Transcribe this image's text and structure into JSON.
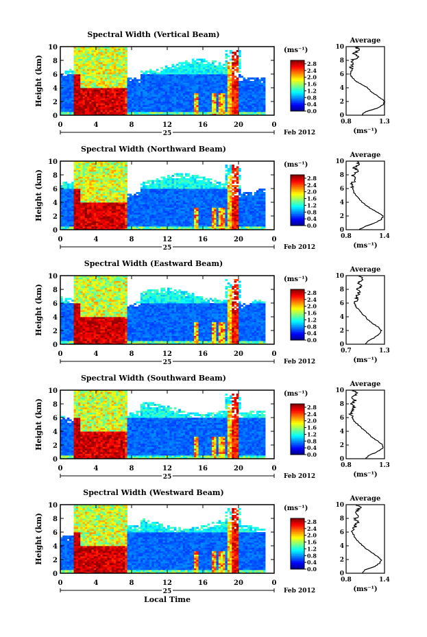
{
  "figure": {
    "xlabel": "Local Time",
    "date_label": "Feb 2012",
    "day_label": "25",
    "ylabel": "Height (km)",
    "cbar_unit": "(ms⁻¹)",
    "avg_title": "Average",
    "avg_xlabel": "(ms⁻¹)"
  },
  "chart_data": [
    {
      "type": "heatmap",
      "title": "Spectral Width (Vertical Beam)",
      "x_ticks": [
        "0",
        "4",
        "8",
        "12",
        "16",
        "20",
        "0"
      ],
      "y_ticks": [
        "0",
        "2",
        "4",
        "6",
        "8",
        "10"
      ],
      "colorbar_ticks": [
        "0.0",
        "0.4",
        "0.8",
        "1.2",
        "1.6",
        "2.0",
        "2.4",
        "2.8"
      ],
      "colorbar_range": [
        0.0,
        3.0
      ],
      "xlim": [
        0,
        24
      ],
      "ylim": [
        0,
        10
      ],
      "avg_profile": {
        "title": "Average",
        "xlim": [
          0.8,
          1.3
        ],
        "x_ticks": [
          "0.8",
          "1.3"
        ],
        "heights": [
          0,
          0.5,
          1,
          1.5,
          2,
          2.5,
          3,
          3.5,
          4,
          4.5,
          5,
          5.5,
          6,
          6.5,
          7,
          7.5,
          8,
          8.5,
          9,
          9.5,
          10
        ],
        "values": [
          1.0,
          1.05,
          1.2,
          1.28,
          1.3,
          1.25,
          1.18,
          1.12,
          1.08,
          1.0,
          0.92,
          0.88,
          0.85,
          0.87,
          0.86,
          0.9,
          0.88,
          0.95,
          0.9,
          0.97,
          0.93
        ]
      }
    },
    {
      "type": "heatmap",
      "title": "Spectral Width (Northward Beam)",
      "x_ticks": [
        "0",
        "4",
        "8",
        "12",
        "16",
        "20",
        "0"
      ],
      "y_ticks": [
        "0",
        "2",
        "4",
        "6",
        "8",
        "10"
      ],
      "colorbar_ticks": [
        "0.0",
        "0.4",
        "0.8",
        "1.2",
        "1.6",
        "2.0",
        "2.4",
        "2.8"
      ],
      "colorbar_range": [
        0.0,
        3.0
      ],
      "xlim": [
        0,
        24
      ],
      "ylim": [
        0,
        10
      ],
      "avg_profile": {
        "title": "Average",
        "xlim": [
          0.8,
          1.4
        ],
        "x_ticks": [
          "0.8",
          "1.4"
        ],
        "heights": [
          0,
          0.5,
          1,
          1.5,
          2,
          2.5,
          3,
          3.5,
          4,
          4.5,
          5,
          5.5,
          6,
          6.5,
          7,
          7.5,
          8,
          8.5,
          9,
          9.5,
          10
        ],
        "values": [
          1.0,
          1.1,
          1.25,
          1.35,
          1.38,
          1.3,
          1.2,
          1.12,
          1.05,
          1.0,
          0.95,
          0.92,
          0.9,
          0.88,
          0.92,
          0.95,
          0.9,
          0.98,
          0.93,
          1.0,
          0.96
        ]
      }
    },
    {
      "type": "heatmap",
      "title": "Spectral Width (Eastward Beam)",
      "x_ticks": [
        "0",
        "4",
        "8",
        "12",
        "16",
        "20",
        "0"
      ],
      "y_ticks": [
        "0",
        "2",
        "4",
        "6",
        "8",
        "10"
      ],
      "colorbar_ticks": [
        "0.0",
        "0.4",
        "0.8",
        "1.2",
        "1.6",
        "2.0",
        "2.4",
        "2.8"
      ],
      "colorbar_range": [
        0.0,
        3.0
      ],
      "xlim": [
        0,
        24
      ],
      "ylim": [
        0,
        10
      ],
      "avg_profile": {
        "title": "Average",
        "xlim": [
          0.7,
          1.3
        ],
        "x_ticks": [
          "0.7",
          "1.3"
        ],
        "heights": [
          0,
          0.5,
          1,
          1.5,
          2,
          2.5,
          3,
          3.5,
          4,
          4.5,
          5,
          5.5,
          6,
          6.5,
          7,
          7.5,
          8,
          8.5,
          9,
          9.5,
          10
        ],
        "values": [
          1.0,
          1.05,
          1.15,
          1.22,
          1.25,
          1.2,
          1.12,
          1.05,
          1.0,
          0.95,
          0.9,
          0.85,
          0.83,
          0.86,
          0.88,
          0.9,
          0.87,
          0.93,
          0.9,
          0.95,
          0.92
        ]
      }
    },
    {
      "type": "heatmap",
      "title": "Spectral Width (Southward Beam)",
      "x_ticks": [
        "0",
        "4",
        "8",
        "12",
        "16",
        "20",
        "0"
      ],
      "y_ticks": [
        "0",
        "2",
        "4",
        "6",
        "8",
        "10"
      ],
      "colorbar_ticks": [
        "0.0",
        "0.4",
        "0.8",
        "1.2",
        "1.6",
        "2.0",
        "2.4",
        "2.8"
      ],
      "colorbar_range": [
        0.0,
        3.0
      ],
      "xlim": [
        0,
        24
      ],
      "ylim": [
        0,
        10
      ],
      "avg_profile": {
        "title": "Average",
        "xlim": [
          0.8,
          1.3
        ],
        "x_ticks": [
          "0.8",
          "1.3"
        ],
        "heights": [
          0,
          0.5,
          1,
          1.5,
          2,
          2.5,
          3,
          3.5,
          4,
          4.5,
          5,
          5.5,
          6,
          6.5,
          7,
          7.5,
          8,
          8.5,
          9,
          9.5,
          10
        ],
        "values": [
          1.05,
          1.1,
          1.2,
          1.27,
          1.28,
          1.22,
          1.15,
          1.1,
          1.05,
          1.0,
          0.95,
          0.9,
          0.88,
          0.86,
          0.88,
          0.9,
          0.87,
          0.92,
          0.88,
          0.94,
          0.9
        ]
      }
    },
    {
      "type": "heatmap",
      "title": "Spectral Width (Westward Beam)",
      "x_ticks": [
        "0",
        "4",
        "8",
        "12",
        "16",
        "20",
        "0"
      ],
      "y_ticks": [
        "0",
        "2",
        "4",
        "6",
        "8",
        "10"
      ],
      "colorbar_ticks": [
        "0.0",
        "0.4",
        "0.8",
        "1.2",
        "1.6",
        "2.0",
        "2.4",
        "2.8"
      ],
      "colorbar_range": [
        0.0,
        3.0
      ],
      "xlim": [
        0,
        24
      ],
      "ylim": [
        0,
        10
      ],
      "avg_profile": {
        "title": "Average",
        "xlim": [
          0.8,
          1.4
        ],
        "x_ticks": [
          "0.8",
          "1.4"
        ],
        "heights": [
          0,
          0.5,
          1,
          1.5,
          2,
          2.5,
          3,
          3.5,
          4,
          4.5,
          5,
          5.5,
          6,
          6.5,
          7,
          7.5,
          8,
          8.5,
          9,
          9.5,
          10
        ],
        "values": [
          1.05,
          1.1,
          1.25,
          1.33,
          1.35,
          1.28,
          1.2,
          1.12,
          1.06,
          1.0,
          0.95,
          0.92,
          0.9,
          0.92,
          0.95,
          0.98,
          0.94,
          1.0,
          0.96,
          1.02,
          0.98
        ]
      }
    }
  ]
}
